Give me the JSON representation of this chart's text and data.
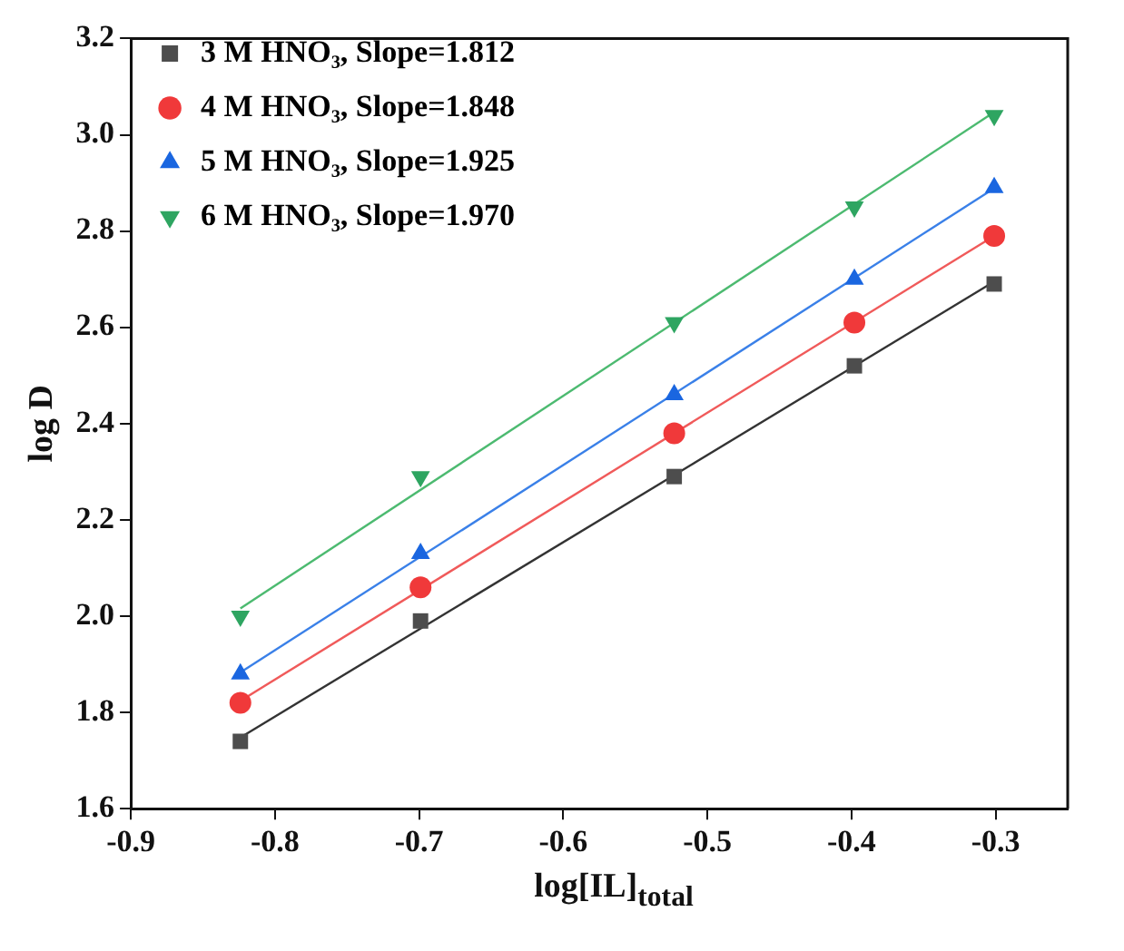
{
  "chart_data": {
    "type": "scatter",
    "xlabel": "log[IL]$_{total}$",
    "ylabel": "log D",
    "xlim": [
      -0.9,
      -0.25
    ],
    "ylim": [
      1.6,
      3.2
    ],
    "xticks": [
      -0.9,
      -0.8,
      -0.7,
      -0.6,
      -0.5,
      -0.4,
      -0.3
    ],
    "yticks": [
      1.6,
      1.8,
      {
        "value": 2,
        "label": "2.0"
      },
      2.2,
      2.4,
      2.6,
      2.8,
      {
        "value": 3,
        "label": "3.0"
      },
      3.2
    ],
    "grid": false,
    "legend": "top left",
    "series": [
      {
        "name": "3 M HNO₃, Slope=1.812",
        "color": "#4d4d4d",
        "marker": "square",
        "x": [
          -0.824,
          -0.699,
          -0.523,
          -0.398,
          -0.301
        ],
        "values": [
          1.74,
          1.99,
          2.29,
          2.52,
          2.69
        ]
      },
      {
        "name": "4 M HNO₃, Slope=1.848",
        "color": "#f0393a",
        "marker": "circle",
        "x": [
          -0.824,
          -0.699,
          -0.523,
          -0.398,
          -0.301
        ],
        "values": [
          1.82,
          2.06,
          2.38,
          2.61,
          2.79
        ]
      },
      {
        "name": "5 M HNO₃, Slope=1.925",
        "color": "#1a66e0",
        "marker": "triangle",
        "x": [
          -0.824,
          -0.699,
          -0.523,
          -0.398,
          -0.301
        ],
        "values": [
          1.88,
          2.13,
          2.46,
          2.7,
          2.89
        ]
      },
      {
        "name": "6 M HNO₃, Slope=1.970",
        "color": "#2ea561",
        "marker": "triangle-down",
        "x": [
          -0.824,
          -0.699,
          -0.523,
          -0.398,
          -0.301
        ],
        "values": [
          2.0,
          2.29,
          2.61,
          2.85,
          3.04
        ]
      },
      {
        "type": "line",
        "color": "#333333",
        "marker": "none",
        "x": [
          -0.824,
          -0.301
        ],
        "values": [
          1.748,
          2.695
        ]
      },
      {
        "type": "line",
        "color": "#f05a5a",
        "marker": "none",
        "x": [
          -0.824,
          -0.301
        ],
        "values": [
          1.824,
          2.79
        ]
      },
      {
        "type": "line",
        "color": "#3a80e8",
        "marker": "none",
        "x": [
          -0.824,
          -0.301
        ],
        "values": [
          1.883,
          2.889
        ]
      },
      {
        "type": "line",
        "color": "#4cba70",
        "marker": "none",
        "x": [
          -0.824,
          -0.301
        ],
        "values": [
          2.016,
          3.047
        ]
      }
    ]
  }
}
